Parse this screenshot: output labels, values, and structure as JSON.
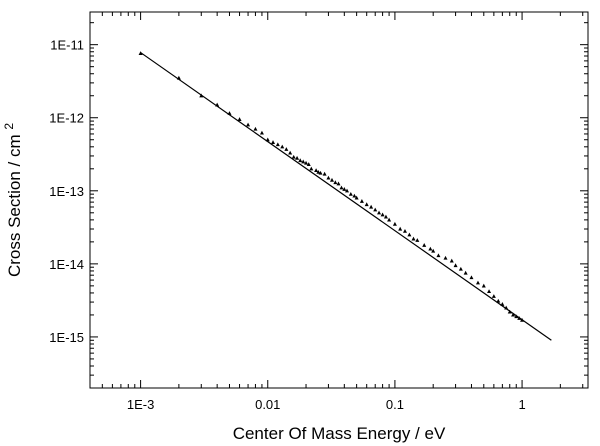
{
  "chart_data": {
    "type": "scatter",
    "title": "",
    "xlabel": "Center Of Mass Energy   /   eV",
    "ylabel": "Cross Section   /   cm",
    "ylabel_superscript": "2",
    "x_scale": "log",
    "y_scale": "log",
    "xlim": [
      0.0004,
      3.3
    ],
    "ylim": [
      2e-16,
      2.8e-11
    ],
    "grid": false,
    "legend": "none",
    "x_ticks": [
      {
        "value": 0.001,
        "label": "1E-3"
      },
      {
        "value": 0.01,
        "label": "0.01"
      },
      {
        "value": 0.1,
        "label": "0.1"
      },
      {
        "value": 1,
        "label": "1"
      }
    ],
    "y_ticks": [
      {
        "value": 1e-15,
        "label": "1E-15"
      },
      {
        "value": 1e-14,
        "label": "1E-14"
      },
      {
        "value": 1e-13,
        "label": "1E-13"
      },
      {
        "value": 1e-12,
        "label": "1E-12"
      },
      {
        "value": 1e-11,
        "label": "1E-11"
      }
    ],
    "fit_line": {
      "x": [
        0.001,
        1.7
      ],
      "y": [
        7.8e-12,
        9e-16
      ]
    },
    "series": [
      {
        "marker": "triangle",
        "color": "#000000",
        "points": [
          [
            0.001,
            7.6e-12
          ],
          [
            0.002,
            3.5e-12
          ],
          [
            0.003,
            2e-12
          ],
          [
            0.004,
            1.5e-12
          ],
          [
            0.005,
            1.15e-12
          ],
          [
            0.006,
            9.5e-13
          ],
          [
            0.007,
            8e-13
          ],
          [
            0.008,
            7e-13
          ],
          [
            0.009,
            6.2e-13
          ],
          [
            0.01,
            5e-13
          ],
          [
            0.011,
            4.6e-13
          ],
          [
            0.012,
            4.3e-13
          ],
          [
            0.013,
            4e-13
          ],
          [
            0.014,
            3.7e-13
          ],
          [
            0.015,
            3.3e-13
          ],
          [
            0.016,
            2.9e-13
          ],
          [
            0.017,
            2.8e-13
          ],
          [
            0.018,
            2.6e-13
          ],
          [
            0.019,
            2.5e-13
          ],
          [
            0.02,
            2.4e-13
          ],
          [
            0.021,
            2.3e-13
          ],
          [
            0.022,
            2e-13
          ],
          [
            0.024,
            1.9e-13
          ],
          [
            0.025,
            1.8e-13
          ],
          [
            0.026,
            1.75e-13
          ],
          [
            0.028,
            1.7e-13
          ],
          [
            0.03,
            1.5e-13
          ],
          [
            0.032,
            1.4e-13
          ],
          [
            0.034,
            1.3e-13
          ],
          [
            0.036,
            1.25e-13
          ],
          [
            0.038,
            1.1e-13
          ],
          [
            0.04,
            1.05e-13
          ],
          [
            0.042,
            1e-13
          ],
          [
            0.045,
            9e-14
          ],
          [
            0.048,
            8.5e-14
          ],
          [
            0.05,
            8e-14
          ],
          [
            0.055,
            7.2e-14
          ],
          [
            0.06,
            6.5e-14
          ],
          [
            0.065,
            6e-14
          ],
          [
            0.07,
            5.5e-14
          ],
          [
            0.075,
            5e-14
          ],
          [
            0.08,
            4.7e-14
          ],
          [
            0.085,
            4.4e-14
          ],
          [
            0.09,
            4e-14
          ],
          [
            0.1,
            3.5e-14
          ],
          [
            0.11,
            3e-14
          ],
          [
            0.12,
            2.8e-14
          ],
          [
            0.13,
            2.5e-14
          ],
          [
            0.14,
            2.2e-14
          ],
          [
            0.15,
            2.1e-14
          ],
          [
            0.17,
            1.8e-14
          ],
          [
            0.19,
            1.6e-14
          ],
          [
            0.2,
            1.5e-14
          ],
          [
            0.22,
            1.3e-14
          ],
          [
            0.25,
            1.2e-14
          ],
          [
            0.28,
            1.1e-14
          ],
          [
            0.3,
            9.5e-15
          ],
          [
            0.33,
            8.5e-15
          ],
          [
            0.36,
            7.5e-15
          ],
          [
            0.4,
            6.5e-15
          ],
          [
            0.45,
            5.5e-15
          ],
          [
            0.5,
            5e-15
          ],
          [
            0.55,
            4.2e-15
          ],
          [
            0.6,
            3.6e-15
          ],
          [
            0.65,
            3.1e-15
          ],
          [
            0.7,
            2.8e-15
          ],
          [
            0.75,
            2.5e-15
          ],
          [
            0.8,
            2.2e-15
          ],
          [
            0.85,
            2e-15
          ],
          [
            0.9,
            1.9e-15
          ],
          [
            0.95,
            1.8e-15
          ],
          [
            1.0,
            1.7e-15
          ]
        ]
      }
    ]
  }
}
